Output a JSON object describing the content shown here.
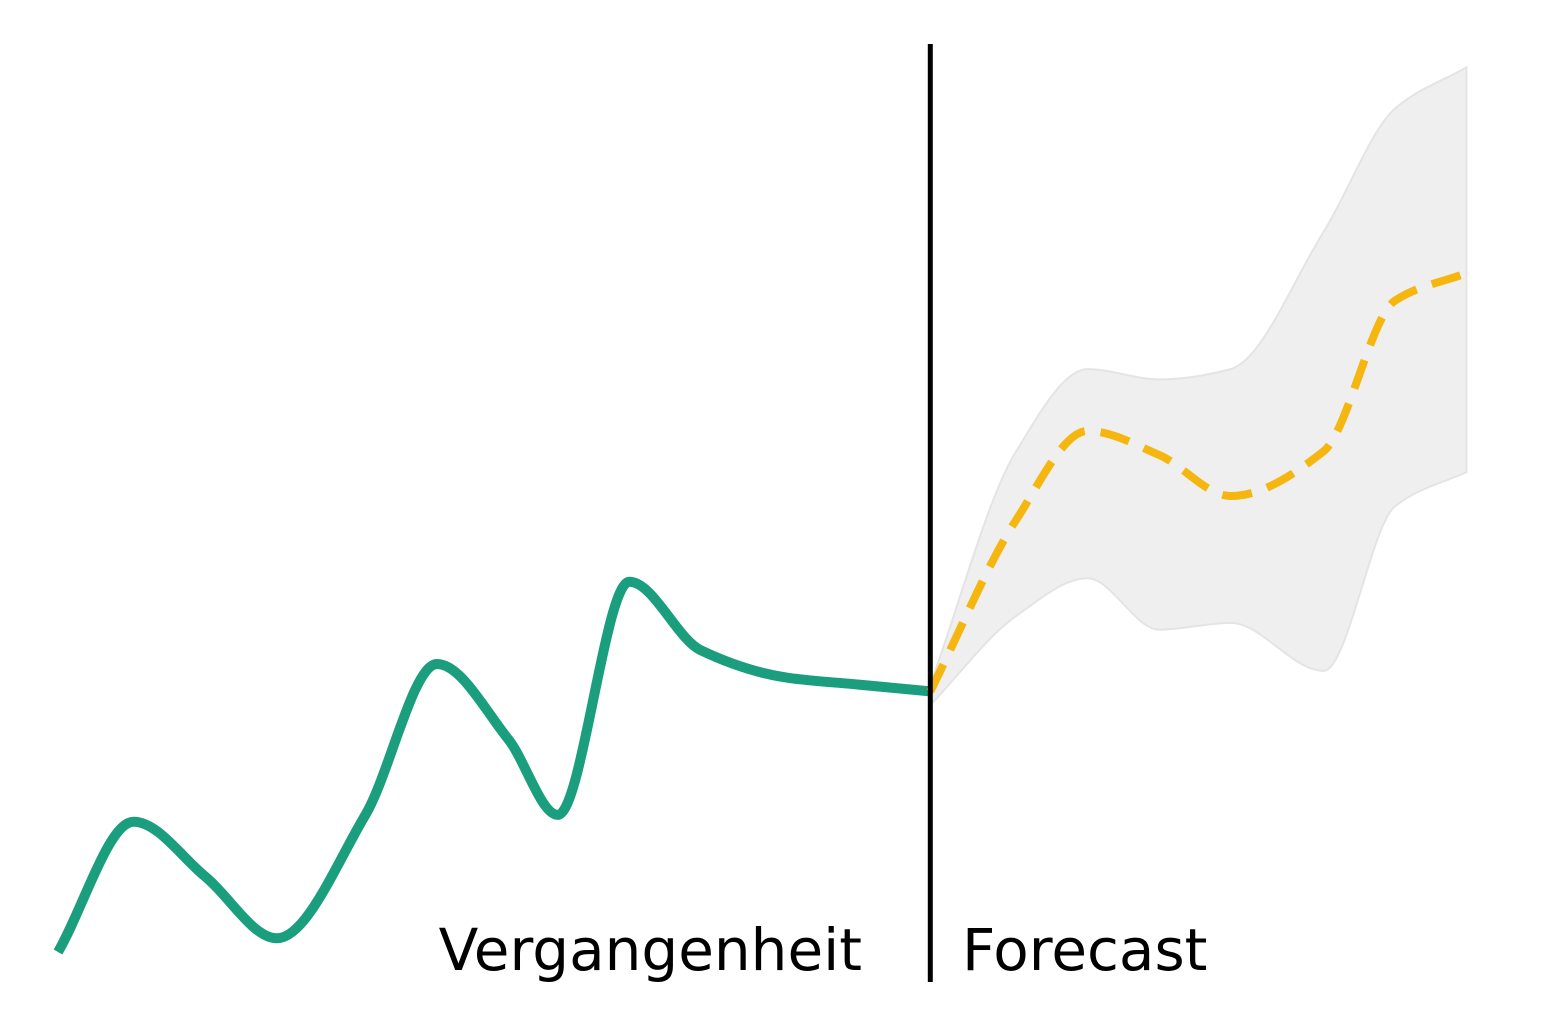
{
  "labels": {
    "past": "Vergangenheit",
    "forecast": "Forecast"
  },
  "colors": {
    "history": "#1a9e7e",
    "forecast": "#f5b60f",
    "band_fill": "#efefef",
    "band_edge": "#e4e4e4",
    "divider": "#000000"
  },
  "chart_data": {
    "type": "line",
    "title": "",
    "xlabel": "",
    "ylabel": "",
    "grid": false,
    "xlim": [
      0,
      20
    ],
    "ylim": [
      0,
      14
    ],
    "series": [
      {
        "name": "",
        "style": "solid",
        "x": [
          0,
          1.06,
          2.06,
          3.06,
          4.3,
          5.3,
          6.3,
          6.99,
          7.99,
          8.99,
          10.2,
          11.2,
          12.2
        ],
        "y": [
          0.7,
          2.6,
          1.8,
          0.9,
          2.7,
          4.9,
          3.8,
          2.7,
          6.1,
          5.1,
          4.7,
          4.6,
          4.5
        ]
      },
      {
        "name": "",
        "style": "dashed",
        "x": [
          12.2,
          13.4,
          14.4,
          15.4,
          16.4,
          17.7,
          18.7,
          19.7
        ],
        "y": [
          4.5,
          7.0,
          8.3,
          7.95,
          7.35,
          8.0,
          10.2,
          10.6
        ]
      }
    ],
    "band": {
      "x": [
        12.2,
        13.4,
        14.4,
        15.4,
        16.4,
        17.7,
        18.7,
        19.7
      ],
      "lower": [
        4.3,
        5.6,
        6.15,
        5.4,
        5.5,
        4.8,
        7.2,
        7.7
      ],
      "upper": [
        4.6,
        8.0,
        9.2,
        9.05,
        9.2,
        11.2,
        13.0,
        13.6
      ]
    },
    "divider_x": 12.2
  }
}
